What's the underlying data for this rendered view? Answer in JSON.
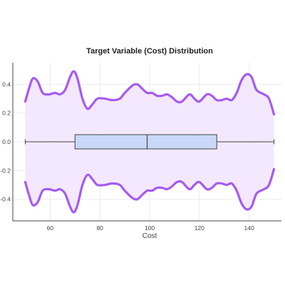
{
  "chart_data": {
    "type": "violin",
    "title": "Target Variable (Cost) Distribution",
    "xlabel": "Cost",
    "ylabel": "",
    "xlim": [
      45,
      153
    ],
    "ylim": [
      -0.55,
      0.55
    ],
    "xticks": [
      60,
      80,
      100,
      120,
      140
    ],
    "yticks": [
      0.4,
      0.2,
      0.0,
      -0.2,
      -0.4
    ],
    "ytick_labels": [
      "0.4",
      "0.2",
      "0.0",
      "-0.2",
      "-0.4"
    ],
    "grid": true,
    "violin": {
      "color": "#a55bf0",
      "fill": "#f2e6fd",
      "density_x": [
        50,
        51.5,
        53,
        55,
        57,
        59.5,
        62,
        64,
        66,
        68,
        69.5,
        71,
        73,
        75,
        77,
        79,
        82,
        85,
        88,
        90,
        93,
        95,
        97,
        99,
        101,
        103,
        105,
        107,
        109,
        111,
        113,
        116,
        118,
        120,
        123,
        125,
        127,
        129,
        131,
        133,
        135,
        137,
        139,
        141,
        143,
        146,
        148,
        150
      ],
      "density_y": [
        0.28,
        0.37,
        0.44,
        0.42,
        0.34,
        0.33,
        0.34,
        0.33,
        0.36,
        0.45,
        0.49,
        0.44,
        0.3,
        0.23,
        0.26,
        0.3,
        0.3,
        0.29,
        0.3,
        0.34,
        0.39,
        0.4,
        0.37,
        0.34,
        0.34,
        0.32,
        0.32,
        0.33,
        0.31,
        0.28,
        0.28,
        0.33,
        0.3,
        0.28,
        0.33,
        0.32,
        0.29,
        0.29,
        0.3,
        0.29,
        0.34,
        0.43,
        0.47,
        0.45,
        0.36,
        0.33,
        0.3,
        0.19
      ]
    },
    "box": {
      "min": 50,
      "q1": 70,
      "median": 99,
      "q3": 127,
      "max": 150,
      "fill": "#c9d8f8",
      "stroke": "#444444"
    }
  }
}
